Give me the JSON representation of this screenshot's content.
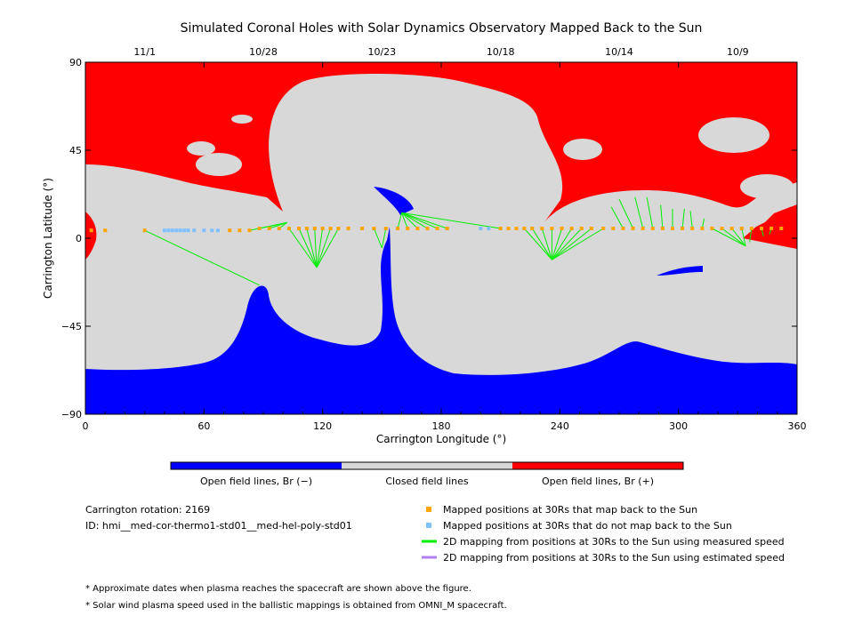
{
  "chart_data": {
    "type": "map",
    "title": "Simulated Coronal Holes with Solar Dynamics Observatory Mapped Back to the Sun",
    "xlabel": "Carrington Longitude (°)",
    "ylabel": "Carrington Latitude (°)",
    "xlim": [
      0,
      360
    ],
    "ylim": [
      -90,
      90
    ],
    "x_ticks": [
      "0",
      "60",
      "120",
      "180",
      "240",
      "300",
      "360"
    ],
    "y_ticks": [
      "90",
      "45",
      "0",
      "−45",
      "−90"
    ],
    "top_axis_dates": [
      {
        "label": "11/1",
        "lon": 30
      },
      {
        "label": "10/28",
        "lon": 90
      },
      {
        "label": "10/23",
        "lon": 150
      },
      {
        "label": "10/18",
        "lon": 210
      },
      {
        "label": "10/14",
        "lon": 270
      },
      {
        "label": "10/9",
        "lon": 330
      }
    ],
    "colors": {
      "open_negative": "#0000ff",
      "closed": "#d8d8d8",
      "open_positive": "#ff0000",
      "mapped": "#ffa500",
      "not_mapped": "#80c0ff",
      "measured": "#00ee00",
      "estimated": "#b080f0"
    },
    "colorbar_labels": [
      "Open field lines, Br (−)",
      "Closed field lines",
      "Open field lines, Br (+)"
    ],
    "mapped_points": [
      {
        "lon": 3,
        "lat": 4
      },
      {
        "lon": 10,
        "lat": 4
      },
      {
        "lon": 30,
        "lat": 4
      },
      {
        "lon": 73,
        "lat": 4
      },
      {
        "lon": 78,
        "lat": 4
      },
      {
        "lon": 83,
        "lat": 4
      },
      {
        "lon": 88,
        "lat": 5
      },
      {
        "lon": 93,
        "lat": 5
      },
      {
        "lon": 98,
        "lat": 5
      },
      {
        "lon": 103,
        "lat": 5
      },
      {
        "lon": 108,
        "lat": 5
      },
      {
        "lon": 112,
        "lat": 5
      },
      {
        "lon": 116,
        "lat": 5
      },
      {
        "lon": 120,
        "lat": 5
      },
      {
        "lon": 124,
        "lat": 5
      },
      {
        "lon": 128,
        "lat": 5
      },
      {
        "lon": 133,
        "lat": 5
      },
      {
        "lon": 140,
        "lat": 5
      },
      {
        "lon": 146,
        "lat": 5
      },
      {
        "lon": 152,
        "lat": 5
      },
      {
        "lon": 158,
        "lat": 5
      },
      {
        "lon": 163,
        "lat": 5
      },
      {
        "lon": 168,
        "lat": 5
      },
      {
        "lon": 173,
        "lat": 5
      },
      {
        "lon": 178,
        "lat": 5
      },
      {
        "lon": 183,
        "lat": 5
      },
      {
        "lon": 210,
        "lat": 5
      },
      {
        "lon": 214,
        "lat": 5
      },
      {
        "lon": 218,
        "lat": 5
      },
      {
        "lon": 222,
        "lat": 5
      },
      {
        "lon": 226,
        "lat": 5
      },
      {
        "lon": 231,
        "lat": 5
      },
      {
        "lon": 236,
        "lat": 5
      },
      {
        "lon": 241,
        "lat": 5
      },
      {
        "lon": 246,
        "lat": 5
      },
      {
        "lon": 251,
        "lat": 5
      },
      {
        "lon": 256,
        "lat": 5
      },
      {
        "lon": 262,
        "lat": 5
      },
      {
        "lon": 267,
        "lat": 5
      },
      {
        "lon": 272,
        "lat": 5
      },
      {
        "lon": 277,
        "lat": 5
      },
      {
        "lon": 282,
        "lat": 5
      },
      {
        "lon": 287,
        "lat": 5
      },
      {
        "lon": 292,
        "lat": 5
      },
      {
        "lon": 297,
        "lat": 5
      },
      {
        "lon": 302,
        "lat": 5
      },
      {
        "lon": 307,
        "lat": 5
      },
      {
        "lon": 312,
        "lat": 5
      },
      {
        "lon": 317,
        "lat": 5
      },
      {
        "lon": 322,
        "lat": 5
      },
      {
        "lon": 327,
        "lat": 5
      },
      {
        "lon": 332,
        "lat": 5
      },
      {
        "lon": 337,
        "lat": 5
      },
      {
        "lon": 342,
        "lat": 5
      },
      {
        "lon": 347,
        "lat": 5
      },
      {
        "lon": 352,
        "lat": 5
      }
    ],
    "unmapped_points": [
      {
        "lon": 40,
        "lat": 4
      },
      {
        "lon": 42,
        "lat": 4
      },
      {
        "lon": 44,
        "lat": 4
      },
      {
        "lon": 46,
        "lat": 4
      },
      {
        "lon": 48,
        "lat": 4
      },
      {
        "lon": 50,
        "lat": 4
      },
      {
        "lon": 52,
        "lat": 4
      },
      {
        "lon": 55,
        "lat": 4
      },
      {
        "lon": 60,
        "lat": 4
      },
      {
        "lon": 64,
        "lat": 4
      },
      {
        "lon": 67,
        "lat": 4
      },
      {
        "lon": 200,
        "lat": 5
      },
      {
        "lon": 204,
        "lat": 5
      }
    ],
    "mapping_lines": [
      {
        "from": [
          30,
          4
        ],
        "to": [
          88,
          -24
        ]
      },
      {
        "from": [
          83,
          4
        ],
        "to": [
          102,
          8
        ]
      },
      {
        "from": [
          88,
          5
        ],
        "to": [
          102,
          8
        ]
      },
      {
        "from": [
          93,
          5
        ],
        "to": [
          102,
          8
        ]
      },
      {
        "from": [
          98,
          5
        ],
        "to": [
          102,
          8
        ]
      },
      {
        "from": [
          108,
          5
        ],
        "to": [
          117,
          -15
        ]
      },
      {
        "from": [
          112,
          5
        ],
        "to": [
          117,
          -15
        ]
      },
      {
        "from": [
          116,
          5
        ],
        "to": [
          117,
          -15
        ]
      },
      {
        "from": [
          120,
          5
        ],
        "to": [
          117,
          -15
        ]
      },
      {
        "from": [
          124,
          5
        ],
        "to": [
          117,
          -15
        ]
      },
      {
        "from": [
          128,
          5
        ],
        "to": [
          117,
          -15
        ]
      },
      {
        "from": [
          103,
          5
        ],
        "to": [
          117,
          -15
        ]
      },
      {
        "from": [
          146,
          5
        ],
        "to": [
          150,
          -5
        ]
      },
      {
        "from": [
          152,
          5
        ],
        "to": [
          150,
          -5
        ]
      },
      {
        "from": [
          158,
          5
        ],
        "to": [
          160,
          13
        ]
      },
      {
        "from": [
          163,
          5
        ],
        "to": [
          160,
          13
        ]
      },
      {
        "from": [
          168,
          5
        ],
        "to": [
          160,
          13
        ]
      },
      {
        "from": [
          173,
          5
        ],
        "to": [
          160,
          13
        ]
      },
      {
        "from": [
          178,
          5
        ],
        "to": [
          160,
          13
        ]
      },
      {
        "from": [
          183,
          5
        ],
        "to": [
          160,
          13
        ]
      },
      {
        "from": [
          210,
          5
        ],
        "to": [
          160,
          13
        ]
      },
      {
        "from": [
          222,
          5
        ],
        "to": [
          236,
          -11
        ]
      },
      {
        "from": [
          226,
          5
        ],
        "to": [
          236,
          -11
        ]
      },
      {
        "from": [
          231,
          5
        ],
        "to": [
          236,
          -11
        ]
      },
      {
        "from": [
          236,
          5
        ],
        "to": [
          236,
          -11
        ]
      },
      {
        "from": [
          241,
          5
        ],
        "to": [
          236,
          -11
        ]
      },
      {
        "from": [
          246,
          5
        ],
        "to": [
          236,
          -11
        ]
      },
      {
        "from": [
          251,
          5
        ],
        "to": [
          236,
          -11
        ]
      },
      {
        "from": [
          256,
          5
        ],
        "to": [
          236,
          -11
        ]
      },
      {
        "from": [
          262,
          5
        ],
        "to": [
          236,
          -11
        ]
      },
      {
        "from": [
          272,
          5
        ],
        "to": [
          266,
          16
        ]
      },
      {
        "from": [
          277,
          5
        ],
        "to": [
          270,
          20
        ]
      },
      {
        "from": [
          282,
          5
        ],
        "to": [
          278,
          21
        ]
      },
      {
        "from": [
          287,
          5
        ],
        "to": [
          284,
          21
        ]
      },
      {
        "from": [
          292,
          5
        ],
        "to": [
          291,
          17
        ]
      },
      {
        "from": [
          297,
          5
        ],
        "to": [
          297,
          15
        ]
      },
      {
        "from": [
          302,
          5
        ],
        "to": [
          303,
          15
        ]
      },
      {
        "from": [
          307,
          5
        ],
        "to": [
          306,
          14
        ]
      },
      {
        "from": [
          312,
          5
        ],
        "to": [
          313,
          10
        ]
      },
      {
        "from": [
          317,
          5
        ],
        "to": [
          334,
          -4
        ]
      },
      {
        "from": [
          322,
          5
        ],
        "to": [
          334,
          -4
        ]
      },
      {
        "from": [
          327,
          5
        ],
        "to": [
          334,
          -4
        ]
      },
      {
        "from": [
          332,
          5
        ],
        "to": [
          334,
          -4
        ]
      },
      {
        "from": [
          337,
          5
        ],
        "to": [
          336,
          -2
        ]
      },
      {
        "from": [
          342,
          5
        ],
        "to": [
          343,
          1
        ]
      },
      {
        "from": [
          347,
          5
        ],
        "to": [
          346,
          2
        ]
      }
    ]
  },
  "colorbar": {
    "neg": "Open field lines, Br (−)",
    "closed": "Closed field lines",
    "pos": "Open field lines, Br (+)"
  },
  "info": {
    "rotation": "Carrington rotation: 2169",
    "id": "ID: hmi__med-cor-thermo1-std01__med-hel-poly-std01"
  },
  "legend": {
    "mapped": "Mapped positions at 30Rs that map back to the Sun",
    "unmapped": "Mapped positions at 30Rs that do not map back to the Sun",
    "measured": "2D mapping from positions at 30Rs to the Sun using measured speed",
    "estimated": "2D mapping from positions at 30Rs to the Sun using estimated speed"
  },
  "notes": {
    "n1": "* Approximate dates when plasma reaches the spacecraft are shown above the figure.",
    "n2": "* Solar wind plasma speed used in the ballistic mappings is obtained from OMNI_M spacecraft."
  }
}
